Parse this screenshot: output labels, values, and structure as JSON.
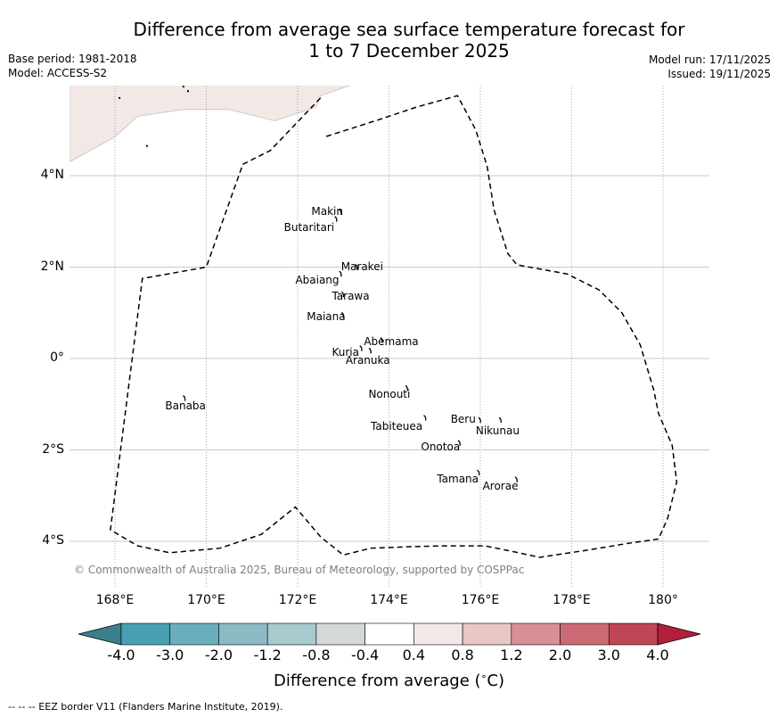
{
  "header": {
    "title_line1": "Difference from average sea surface temperature forecast for",
    "title_line2": "1 to 7 December 2025",
    "base_period": "Base period: 1981-2018",
    "model": "Model: ACCESS-S2",
    "model_run": "Model run: 17/11/2025",
    "issued": "Issued: 19/11/2025"
  },
  "map": {
    "extent": {
      "lon_min": 167.0,
      "lon_max": 181.0,
      "lat_min": -5.0,
      "lat_max": 6.0
    },
    "lon_ticks": [
      {
        "value": 168,
        "label": "168°E"
      },
      {
        "value": 170,
        "label": "170°E"
      },
      {
        "value": 172,
        "label": "172°E"
      },
      {
        "value": 174,
        "label": "174°E"
      },
      {
        "value": 176,
        "label": "176°E"
      },
      {
        "value": 178,
        "label": "178°E"
      },
      {
        "value": 180,
        "label": "180°"
      }
    ],
    "lat_ticks": [
      {
        "value": 4,
        "label": "4°N"
      },
      {
        "value": 2,
        "label": "2°N"
      },
      {
        "value": 0,
        "label": "0°"
      },
      {
        "value": -2,
        "label": "2°S"
      },
      {
        "value": -4,
        "label": "4°S"
      }
    ],
    "anomaly_region_color": "#f2e8e6",
    "anomaly_region_category": "0.4 to 0.8",
    "anomaly_region_polygon": [
      [
        167,
        4.3
      ],
      [
        168,
        4.85
      ],
      [
        168.5,
        5.3
      ],
      [
        169.5,
        5.45
      ],
      [
        170.5,
        5.45
      ],
      [
        171.5,
        5.2
      ],
      [
        172.4,
        5.5
      ],
      [
        172.5,
        5.75
      ],
      [
        173.5,
        6.1
      ],
      [
        167,
        6.1
      ]
    ],
    "eez_border": [
      [
        172.5,
        5.7
      ],
      [
        171.4,
        4.55
      ],
      [
        170.8,
        4.25
      ],
      [
        170.0,
        2.0
      ],
      [
        168.6,
        1.75
      ],
      [
        167.9,
        -3.75
      ],
      [
        168.5,
        -4.1
      ],
      [
        169.2,
        -4.25
      ],
      [
        170.3,
        -4.15
      ],
      [
        171.2,
        -3.85
      ],
      [
        171.95,
        -3.25
      ],
      [
        172.5,
        -3.9
      ],
      [
        173.0,
        -4.3
      ],
      [
        173.6,
        -4.15
      ],
      [
        174.4,
        -4.12
      ],
      [
        175.2,
        -4.1
      ],
      [
        176.1,
        -4.1
      ],
      [
        176.6,
        -4.2
      ],
      [
        177.3,
        -4.35
      ],
      [
        178.3,
        -4.2
      ],
      [
        179.2,
        -4.05
      ],
      [
        179.9,
        -3.95
      ],
      [
        180.1,
        -3.5
      ],
      [
        180.3,
        -2.7
      ],
      [
        180.2,
        -1.9
      ],
      [
        179.9,
        -1.2
      ],
      [
        179.8,
        -0.7
      ],
      [
        179.5,
        0.3
      ],
      [
        179.1,
        1.0
      ],
      [
        178.6,
        1.5
      ],
      [
        177.9,
        1.85
      ],
      [
        176.8,
        2.05
      ],
      [
        176.6,
        2.3
      ],
      [
        176.3,
        3.25
      ],
      [
        176.15,
        4.2
      ],
      [
        175.9,
        5.0
      ],
      [
        175.5,
        5.75
      ],
      [
        174.6,
        5.5
      ],
      [
        173.7,
        5.2
      ],
      [
        172.6,
        4.85
      ],
      [
        171.3,
        4.6
      ],
      [
        170.8,
        4.3
      ],
      [
        170.1,
        2.1
      ],
      [
        168.55,
        1.75
      ],
      [
        167.9,
        -3.75
      ]
    ],
    "islands": [
      {
        "name": "Makin",
        "lon": 172.95,
        "lat": 3.2,
        "label_lon": 172.3,
        "label_lat": 3.2
      },
      {
        "name": "Butaritari",
        "lon": 172.85,
        "lat": 3.05,
        "label_lon": 171.7,
        "label_lat": 2.85
      },
      {
        "name": "Marakei",
        "lon": 173.3,
        "lat": 2.0,
        "label_lon": 172.95,
        "label_lat": 2.0
      },
      {
        "name": "Abaiang",
        "lon": 172.95,
        "lat": 1.85,
        "label_lon": 171.95,
        "label_lat": 1.7
      },
      {
        "name": "Tarawa",
        "lon": 173.0,
        "lat": 1.4,
        "label_lon": 172.75,
        "label_lat": 1.35
      },
      {
        "name": "Maiana",
        "lon": 173.0,
        "lat": 0.95,
        "label_lon": 172.2,
        "label_lat": 0.9
      },
      {
        "name": "Abemama",
        "lon": 173.85,
        "lat": 0.4,
        "label_lon": 173.45,
        "label_lat": 0.35
      },
      {
        "name": "Kuria",
        "lon": 173.4,
        "lat": 0.22,
        "label_lon": 172.75,
        "label_lat": 0.12
      },
      {
        "name": "Aranuka",
        "lon": 173.6,
        "lat": 0.17,
        "label_lon": 173.05,
        "label_lat": -0.05
      },
      {
        "name": "Nonouti",
        "lon": 174.4,
        "lat": -0.65,
        "label_lon": 173.55,
        "label_lat": -0.8
      },
      {
        "name": "Tabiteuea",
        "lon": 174.8,
        "lat": -1.3,
        "label_lon": 173.6,
        "label_lat": -1.5
      },
      {
        "name": "Beru",
        "lon": 176.0,
        "lat": -1.35,
        "label_lon": 175.35,
        "label_lat": -1.35
      },
      {
        "name": "Nikunau",
        "lon": 176.45,
        "lat": -1.35,
        "label_lon": 175.9,
        "label_lat": -1.6
      },
      {
        "name": "Onotoa",
        "lon": 175.55,
        "lat": -1.85,
        "label_lon": 174.7,
        "label_lat": -1.95
      },
      {
        "name": "Tamana",
        "lon": 175.97,
        "lat": -2.5,
        "label_lon": 175.05,
        "label_lat": -2.65
      },
      {
        "name": "Arorae",
        "lon": 176.8,
        "lat": -2.65,
        "label_lon": 176.05,
        "label_lat": -2.8
      },
      {
        "name": "Banaba",
        "lon": 169.53,
        "lat": -0.87,
        "label_lon": 169.1,
        "label_lat": -1.05
      }
    ],
    "small_features": [
      {
        "lon": 168.1,
        "lat": 5.7
      },
      {
        "lon": 169.5,
        "lat": 5.95
      },
      {
        "lon": 169.6,
        "lat": 5.85
      },
      {
        "lon": 168.7,
        "lat": 4.65
      }
    ]
  },
  "copyright": "© Commonwealth of Australia 2025, Bureau of Meteorology, supported by COSPPac",
  "colorbar": {
    "label": "Difference from average (°C)",
    "label_prefix": "Difference from average (",
    "label_unit": "°C)",
    "ticks": [
      "-4.0",
      "-3.0",
      "-2.0",
      "-1.2",
      "-0.8",
      "-0.4",
      "0.4",
      "0.8",
      "1.2",
      "2.0",
      "3.0",
      "4.0"
    ],
    "under_color": "#3b7f8d",
    "over_color": "#b21f3c",
    "bins": [
      {
        "range": "-4.0 to -3.0",
        "color": "#47a0b1"
      },
      {
        "range": "-3.0 to -2.0",
        "color": "#6aaebb"
      },
      {
        "range": "-2.0 to -1.2",
        "color": "#8cbac5"
      },
      {
        "range": "-1.2 to -0.8",
        "color": "#a8c9cd"
      },
      {
        "range": "-0.8 to -0.4",
        "color": "#d3d9d8"
      },
      {
        "range": "-0.4 to 0.4",
        "color": "#ffffff"
      },
      {
        "range": "0.4 to 0.8",
        "color": "#f2e8e6"
      },
      {
        "range": "0.8 to 1.2",
        "color": "#e9c7c2"
      },
      {
        "range": "1.2 to 2.0",
        "color": "#d88f96"
      },
      {
        "range": "2.0 to 3.0",
        "color": "#cc6b75"
      },
      {
        "range": "3.0 to 4.0",
        "color": "#c04557"
      }
    ]
  },
  "eez_note": "--  --  -- EEZ border V11 (Flanders Marine Institute, 2019)."
}
